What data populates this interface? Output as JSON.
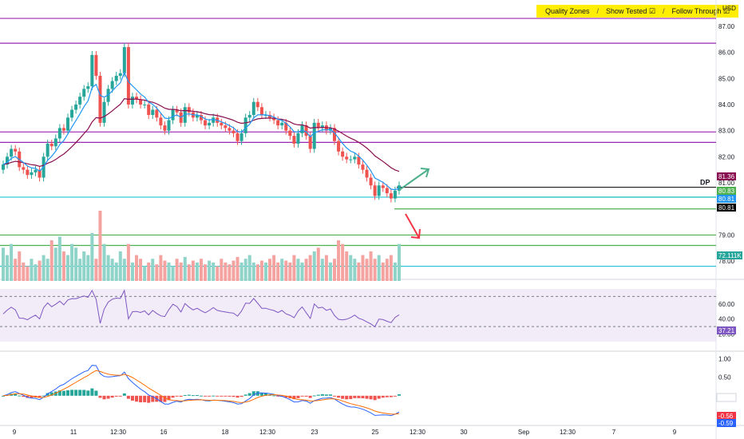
{
  "chart_data": {
    "type": "candlestick",
    "currency": "USD",
    "legend": [
      "Quality Zones",
      "Show Tested ☑",
      "Follow Through ☑"
    ],
    "price_axis": {
      "ticks": [
        "87.00",
        "86.00",
        "85.00",
        "84.00",
        "83.00",
        "82.00",
        "81.00",
        "80.00",
        "79.00",
        "78.00"
      ],
      "range": [
        77.3,
        87.7
      ]
    },
    "time_axis": {
      "labels": [
        "9",
        "11",
        "12:30",
        "16",
        "18",
        "12:30",
        "23",
        "25",
        "12:30",
        "30",
        "Sep",
        "12:30",
        "7",
        "9"
      ]
    },
    "levels": {
      "purple": [
        87.3,
        86.35,
        82.95,
        82.55
      ],
      "dp": {
        "label": "DP",
        "price": 80.83
      },
      "green": [
        80.45,
        80.0,
        79.0,
        78.6
      ],
      "cyan": [
        80.45,
        77.8
      ]
    },
    "price_badges": [
      {
        "text": "81.36",
        "color": "#880e4f"
      },
      {
        "text": "80.83",
        "color": "#4caf50"
      },
      {
        "text": "80.81",
        "color": "#2196f3"
      },
      {
        "text": "80.81",
        "color": "#000000"
      }
    ],
    "volume_badge": {
      "text": "72.111K",
      "color": "#26a69a"
    },
    "rsi": {
      "ticks": [
        "60.00",
        "40.00",
        "20.00"
      ],
      "badge": "37.21",
      "upper": 70,
      "lower": 30
    },
    "macd": {
      "ticks": [
        "1.00",
        "0.50",
        "-0.03",
        "-0.56"
      ],
      "badges": [
        {
          "text": "-0.03",
          "color": "#ffffff"
        },
        {
          "text": "-0.56",
          "color": "#f23645"
        },
        {
          "text": "-0.59",
          "color": "#2962ff"
        }
      ]
    },
    "closes": [
      81.7,
      82.0,
      82.3,
      82.2,
      81.6,
      81.5,
      81.3,
      81.4,
      81.5,
      81.2,
      82.0,
      82.5,
      82.4,
      82.7,
      83.1,
      83.0,
      83.5,
      83.8,
      84.0,
      84.3,
      84.6,
      84.7,
      85.9,
      85.1,
      83.3,
      84.1,
      84.6,
      84.9,
      85.1,
      85.2,
      86.2,
      84.0,
      84.3,
      84.2,
      84.0,
      84.0,
      83.6,
      83.8,
      83.5,
      83.2,
      83.0,
      83.4,
      83.8,
      83.7,
      83.3,
      83.9,
      83.7,
      83.5,
      83.6,
      83.4,
      83.2,
      83.3,
      83.5,
      83.3,
      83.2,
      83.1,
      83.0,
      82.9,
      82.6,
      82.9,
      83.5,
      83.6,
      84.1,
      83.9,
      83.6,
      83.6,
      83.5,
      83.4,
      83.2,
      83.3,
      83.0,
      82.8,
      82.5,
      82.9,
      83.2,
      82.8,
      82.3,
      83.3,
      83.1,
      83.2,
      83.0,
      83.1,
      82.6,
      82.2,
      82.0,
      81.9,
      81.9,
      82.0,
      81.7,
      81.5,
      81.2,
      80.9,
      80.5,
      80.9,
      80.8,
      80.6,
      80.4,
      80.7,
      80.9
    ],
    "volumes": [
      18,
      14,
      20,
      12,
      16,
      10,
      8,
      12,
      9,
      11,
      14,
      12,
      22,
      18,
      24,
      16,
      14,
      20,
      18,
      12,
      16,
      14,
      26,
      12,
      38,
      20,
      14,
      12,
      10,
      16,
      12,
      20,
      10,
      14,
      12,
      8,
      10,
      12,
      9,
      14,
      11,
      10,
      8,
      12,
      10,
      13,
      9,
      11,
      10,
      12,
      9,
      11,
      10,
      8,
      12,
      10,
      9,
      11,
      13,
      10,
      12,
      14,
      10,
      9,
      11,
      10,
      12,
      14,
      10,
      12,
      11,
      10,
      14,
      12,
      10,
      12,
      14,
      16,
      18,
      12,
      14,
      10,
      12,
      22,
      20,
      16,
      14,
      12,
      10,
      14,
      12,
      16,
      12,
      14,
      10,
      12,
      14,
      10,
      20
    ],
    "annotations": [
      "up-arrow",
      "down-arrow"
    ]
  }
}
